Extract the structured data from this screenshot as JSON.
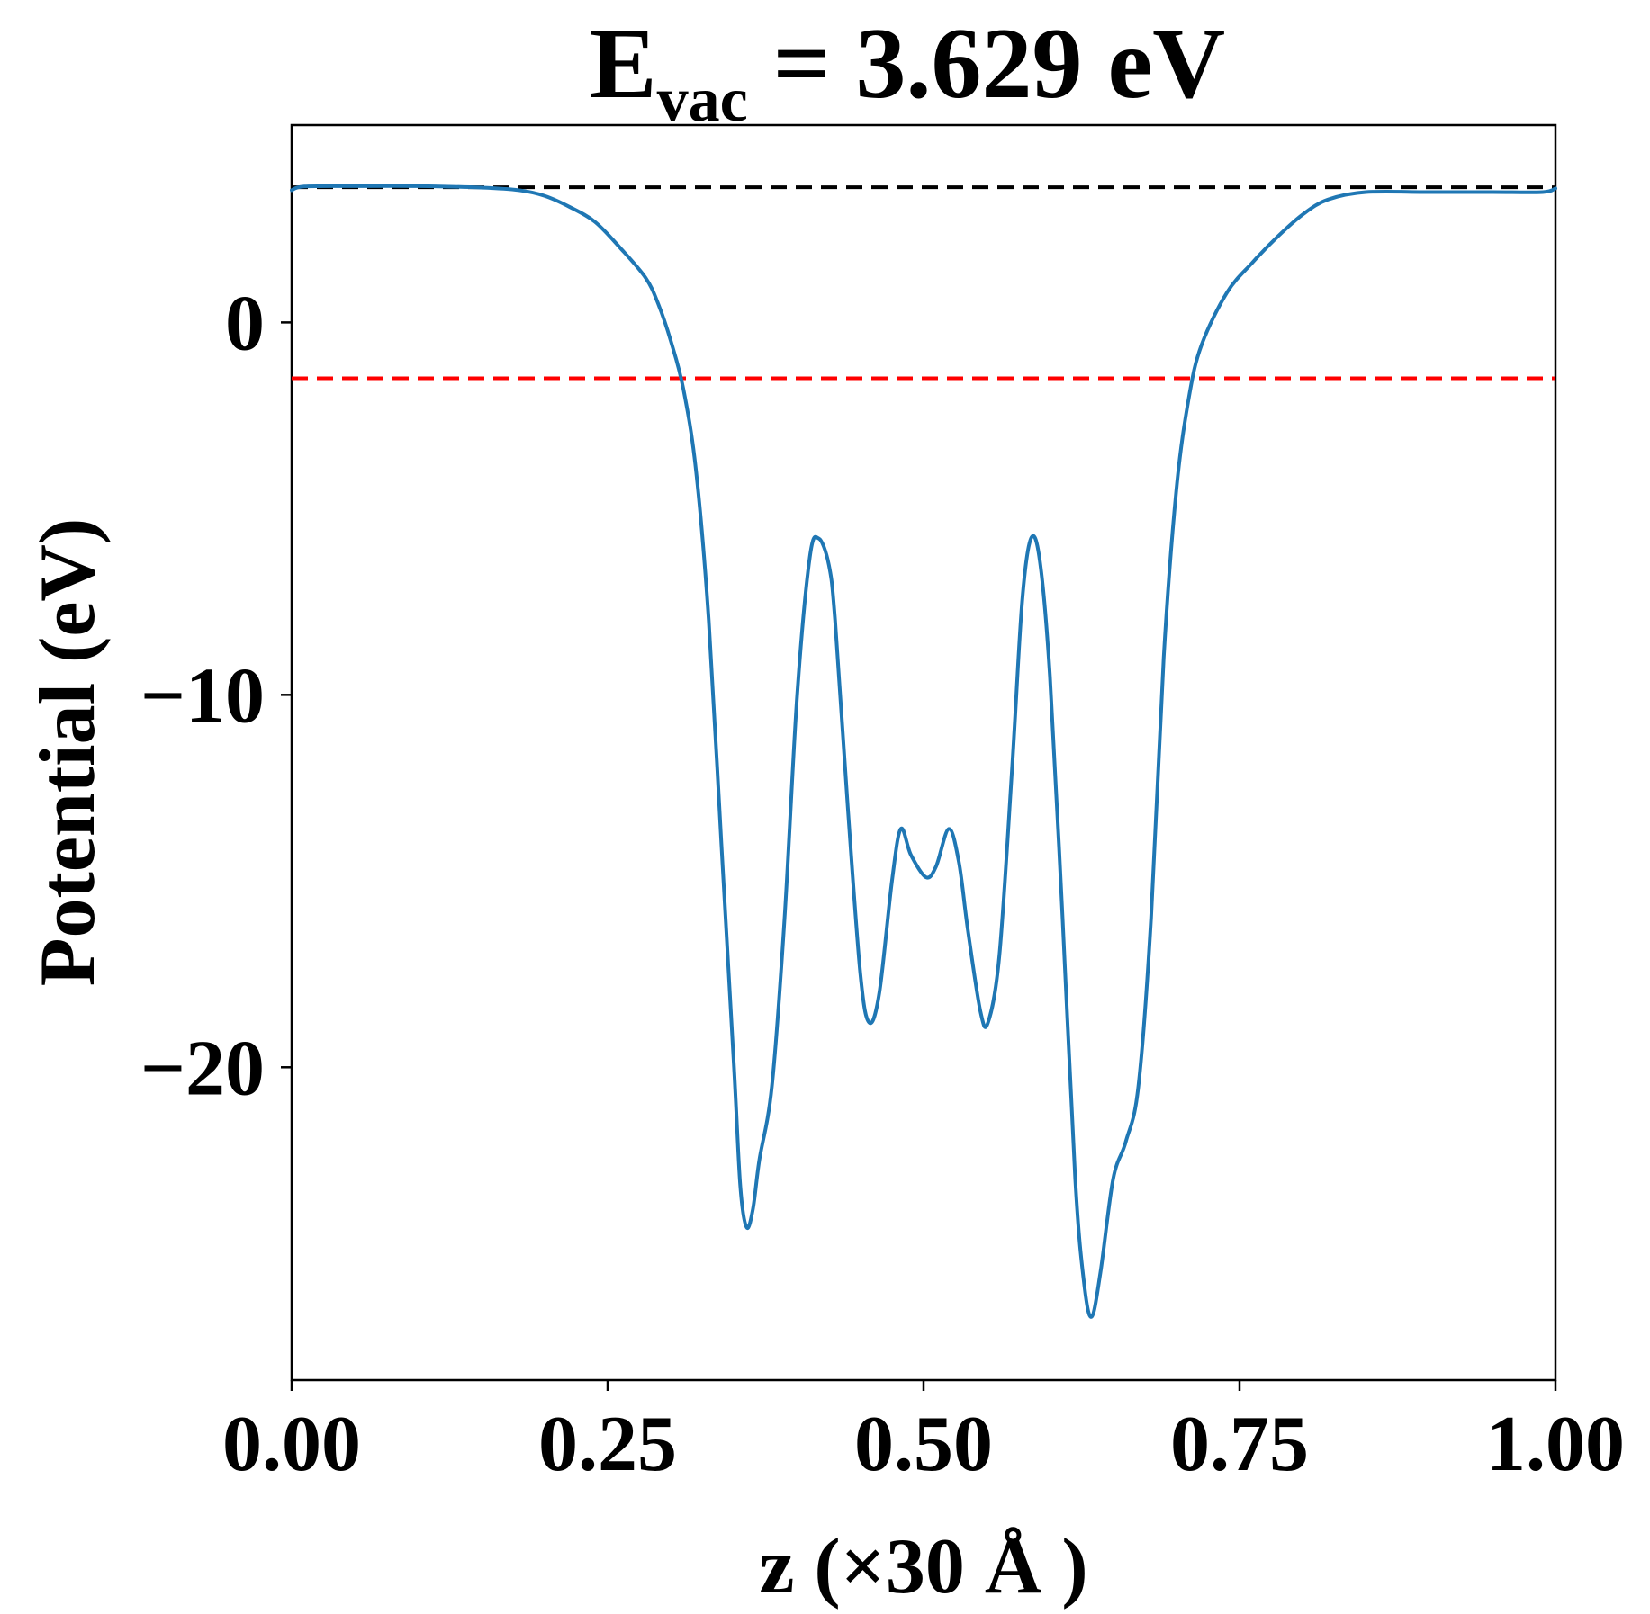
{
  "chart_data": {
    "type": "line",
    "title": {
      "main": "E",
      "subscript": "vac",
      "rest": " = 3.629 eV"
    },
    "xlabel": "z (×30 Å )",
    "ylabel": "Potential (eV)",
    "xlim": [
      0.0,
      1.0
    ],
    "ylim": [
      -28.4,
      5.3
    ],
    "xticks": [
      0.0,
      0.25,
      0.5,
      0.75,
      1.0
    ],
    "xtick_labels": [
      "0.00",
      "0.25",
      "0.50",
      "0.75",
      "1.00"
    ],
    "yticks": [
      0,
      -10,
      -20
    ],
    "ytick_labels": [
      "0",
      "−10",
      "−20"
    ],
    "grid": false,
    "legend": "none",
    "reference_lines": [
      {
        "y": 3.629,
        "color": "#000000",
        "style": "dashed"
      },
      {
        "y": -1.5,
        "color": "#ff0000",
        "style": "dashed"
      }
    ],
    "series": [
      {
        "color": "#1f77b4",
        "points": [
          [
            0.0,
            3.55
          ],
          [
            0.01,
            3.65
          ],
          [
            0.05,
            3.66
          ],
          [
            0.1,
            3.66
          ],
          [
            0.15,
            3.62
          ],
          [
            0.18,
            3.55
          ],
          [
            0.2,
            3.4
          ],
          [
            0.22,
            3.1
          ],
          [
            0.24,
            2.7
          ],
          [
            0.26,
            2.0
          ],
          [
            0.28,
            1.2
          ],
          [
            0.29,
            0.5
          ],
          [
            0.3,
            -0.5
          ],
          [
            0.31,
            -1.8
          ],
          [
            0.32,
            -4.0
          ],
          [
            0.33,
            -8.0
          ],
          [
            0.34,
            -14.0
          ],
          [
            0.35,
            -20.0
          ],
          [
            0.355,
            -23.2
          ],
          [
            0.36,
            -24.3
          ],
          [
            0.365,
            -23.8
          ],
          [
            0.37,
            -22.5
          ],
          [
            0.38,
            -20.5
          ],
          [
            0.39,
            -16.0
          ],
          [
            0.4,
            -10.0
          ],
          [
            0.41,
            -6.3
          ],
          [
            0.417,
            -5.8
          ],
          [
            0.425,
            -6.5
          ],
          [
            0.43,
            -8.0
          ],
          [
            0.44,
            -13.0
          ],
          [
            0.45,
            -17.5
          ],
          [
            0.457,
            -18.8
          ],
          [
            0.465,
            -18.0
          ],
          [
            0.475,
            -15.0
          ],
          [
            0.482,
            -13.6
          ],
          [
            0.49,
            -14.3
          ],
          [
            0.502,
            -14.9
          ],
          [
            0.51,
            -14.6
          ],
          [
            0.52,
            -13.6
          ],
          [
            0.528,
            -14.5
          ],
          [
            0.535,
            -16.3
          ],
          [
            0.545,
            -18.5
          ],
          [
            0.551,
            -18.8
          ],
          [
            0.56,
            -17.0
          ],
          [
            0.57,
            -12.0
          ],
          [
            0.578,
            -7.5
          ],
          [
            0.585,
            -5.8
          ],
          [
            0.592,
            -6.4
          ],
          [
            0.6,
            -9.5
          ],
          [
            0.61,
            -16.0
          ],
          [
            0.62,
            -23.0
          ],
          [
            0.627,
            -25.8
          ],
          [
            0.633,
            -26.7
          ],
          [
            0.64,
            -25.5
          ],
          [
            0.65,
            -23.0
          ],
          [
            0.66,
            -22.0
          ],
          [
            0.67,
            -20.5
          ],
          [
            0.68,
            -16.0
          ],
          [
            0.69,
            -9.0
          ],
          [
            0.7,
            -4.5
          ],
          [
            0.71,
            -2.0
          ],
          [
            0.72,
            -0.6
          ],
          [
            0.74,
            0.8
          ],
          [
            0.76,
            1.6
          ],
          [
            0.78,
            2.3
          ],
          [
            0.8,
            2.9
          ],
          [
            0.82,
            3.3
          ],
          [
            0.85,
            3.5
          ],
          [
            0.9,
            3.5
          ],
          [
            0.95,
            3.5
          ],
          [
            0.99,
            3.5
          ],
          [
            1.0,
            3.6
          ]
        ]
      }
    ]
  }
}
